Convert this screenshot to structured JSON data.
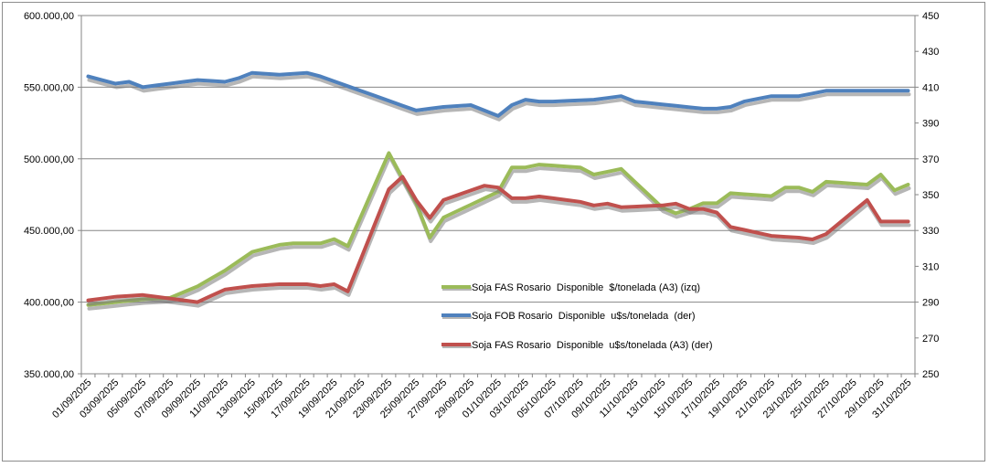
{
  "chart_data": {
    "type": "line",
    "x": [
      "01/09/2025",
      "02/09/2025",
      "03/09/2025",
      "04/09/2025",
      "05/09/2025",
      "06/09/2025",
      "07/09/2025",
      "08/09/2025",
      "09/09/2025",
      "10/09/2025",
      "11/09/2025",
      "12/09/2025",
      "13/09/2025",
      "14/09/2025",
      "15/09/2025",
      "16/09/2025",
      "17/09/2025",
      "18/09/2025",
      "19/09/2025",
      "20/09/2025",
      "21/09/2025",
      "22/09/2025",
      "23/09/2025",
      "24/09/2025",
      "25/09/2025",
      "26/09/2025",
      "27/09/2025",
      "28/09/2025",
      "29/09/2025",
      "30/09/2025",
      "01/10/2025",
      "02/10/2025",
      "03/10/2025",
      "04/10/2025",
      "05/10/2025",
      "06/10/2025",
      "07/10/2025",
      "08/10/2025",
      "09/10/2025",
      "10/10/2025",
      "11/10/2025",
      "12/10/2025",
      "13/10/2025",
      "14/10/2025",
      "15/10/2025",
      "16/10/2025",
      "17/10/2025",
      "18/10/2025",
      "19/10/2025",
      "20/10/2025",
      "21/10/2025",
      "22/10/2025",
      "23/10/2025",
      "24/10/2025",
      "25/10/2025",
      "26/10/2025",
      "27/10/2025",
      "28/10/2025",
      "29/10/2025",
      "30/10/2025",
      "31/10/2025"
    ],
    "x_tick_labels": [
      "01/09/2025",
      "03/09/2025",
      "05/09/2025",
      "07/09/2025",
      "09/09/2025",
      "11/09/2025",
      "13/09/2025",
      "15/09/2025",
      "17/09/2025",
      "19/09/2025",
      "21/09/2025",
      "23/09/2025",
      "25/09/2025",
      "27/09/2025",
      "29/09/2025",
      "01/10/2025",
      "03/10/2025",
      "05/10/2025",
      "07/10/2025",
      "09/10/2025",
      "11/10/2025",
      "13/10/2025",
      "15/10/2025",
      "17/10/2025",
      "19/10/2025",
      "21/10/2025",
      "23/10/2025",
      "25/10/2025",
      "27/10/2025",
      "29/10/2025",
      "31/10/2025"
    ],
    "y_left": {
      "min": 350000,
      "max": 600000,
      "step": 50000,
      "tick_labels": [
        "350.000,00",
        "400.000,00",
        "450.000,00",
        "500.000,00",
        "550.000,00",
        "600.000,00"
      ]
    },
    "y_right": {
      "min": 250,
      "max": 450,
      "step": 20,
      "tick_labels": [
        "250",
        "270",
        "290",
        "310",
        "330",
        "350",
        "370",
        "390",
        "410",
        "430",
        "450"
      ]
    },
    "grid": true,
    "legend_position": "center",
    "series": [
      {
        "name": "Soja FAS Rosario  Disponible  $/tonelada (A3) (izq)",
        "axis": "left",
        "color": "#9bbb59",
        "values": [
          398000,
          null,
          400000,
          null,
          402000,
          null,
          403000,
          null,
          411000,
          null,
          422000,
          null,
          435000,
          null,
          440000,
          441000,
          441000,
          441000,
          444000,
          439000,
          null,
          null,
          504000,
          null,
          469000,
          445000,
          459000,
          null,
          null,
          null,
          477000,
          494000,
          494000,
          496000,
          null,
          null,
          494000,
          489000,
          491000,
          493000,
          null,
          null,
          466000,
          462000,
          465000,
          469000,
          469000,
          476000,
          null,
          null,
          474000,
          480000,
          480000,
          477000,
          484000,
          null,
          null,
          482000,
          489000,
          478000,
          482000
        ]
      },
      {
        "name": "Soja FOB Rosario  Disponible  u$s/tonelada  (der)",
        "axis": "right",
        "color": "#4f81bd",
        "values": [
          416,
          null,
          412,
          413,
          410,
          null,
          null,
          null,
          414,
          null,
          413,
          415,
          418,
          null,
          417,
          null,
          418,
          416,
          null,
          null,
          null,
          null,
          null,
          null,
          397,
          null,
          399,
          null,
          400,
          null,
          394,
          400,
          403,
          402,
          402,
          null,
          null,
          403,
          null,
          405,
          402,
          null,
          null,
          null,
          null,
          398,
          398,
          399,
          402,
          null,
          405,
          null,
          405,
          null,
          408,
          null,
          null,
          null,
          null,
          null,
          null
        ]
      },
      {
        "name": "Soja FAS Rosario  Disponible  u$s/tonelada (A3) (der)",
        "axis": "right",
        "color": "#c0504d",
        "values": [
          291,
          null,
          293,
          null,
          294,
          null,
          292,
          null,
          290,
          null,
          297,
          null,
          299,
          null,
          300,
          null,
          300,
          299,
          300,
          296,
          null,
          null,
          353,
          360,
          347,
          337,
          347,
          null,
          null,
          355,
          354,
          348,
          348,
          349,
          null,
          null,
          346,
          344,
          345,
          343,
          null,
          null,
          344,
          345,
          342,
          342,
          340,
          332,
          null,
          null,
          327,
          null,
          326,
          325,
          328,
          null,
          null,
          347,
          335,
          335,
          335
        ]
      }
    ]
  }
}
